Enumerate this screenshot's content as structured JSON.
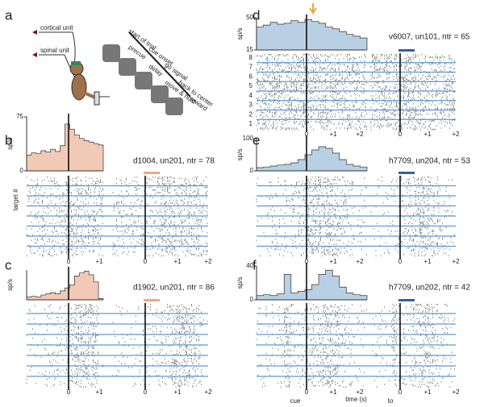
{
  "panel_a": {
    "label": "a",
    "cortical": "cortical unit",
    "spinal": "spinal unit",
    "task_labels": [
      "start of trial",
      "cue onset",
      "go signal",
      "back to center",
      "reward",
      "precue",
      "delay",
      "move & hold"
    ]
  },
  "left_panels": [
    {
      "label": "b",
      "info": "d1004, un201, ntr =  78",
      "ylabel": "sp/s",
      "side_label": "target #",
      "ylim": [
        0,
        75
      ],
      "yticks": [
        0,
        75
      ],
      "color": "#f2c9b6",
      "marker_color": "#f4a582",
      "values": [
        22,
        25,
        24,
        28,
        26,
        30,
        27,
        35,
        65,
        58,
        50,
        45,
        42,
        40,
        38,
        36
      ],
      "xticks_left": [
        "0",
        "+1"
      ],
      "xticks_right": [
        "0",
        "+1",
        "+2"
      ]
    },
    {
      "label": "c",
      "info": "d1902, un201, ntr =  86",
      "ylabel": "sp/s",
      "ylim": [
        0,
        50
      ],
      "color": "#f2c9b6",
      "marker_color": "#f4a582",
      "values": [
        5,
        6,
        5,
        8,
        10,
        12,
        10,
        15,
        20,
        25,
        40,
        45,
        48,
        42,
        30,
        2
      ],
      "xticks_left": [
        "0",
        "+1"
      ],
      "xticks_right": [
        "0",
        "+1",
        "+2"
      ]
    }
  ],
  "right_panels": [
    {
      "label": "d",
      "info": "v6007, un101, ntr =  65",
      "ylabel": "sp/s",
      "ylim": [
        15,
        50
      ],
      "yticks": [
        15,
        50
      ],
      "color": "#b9d0e4",
      "marker_color": "#3b5ba9",
      "targets": [
        1,
        2,
        3,
        4,
        5,
        6,
        7,
        8
      ],
      "values": [
        40,
        42,
        45,
        43,
        44,
        47,
        45,
        48,
        46,
        44,
        40,
        38,
        35,
        32,
        30,
        28
      ],
      "xticks_left": [
        "0",
        "+1",
        "+2"
      ],
      "xticks_right": [
        "0",
        "+1",
        "+2"
      ]
    },
    {
      "label": "e",
      "info": "h7709, un204, ntr = 53",
      "ylabel": "sp/s",
      "ylim": [
        0,
        100
      ],
      "yticks": [
        0,
        100
      ],
      "color": "#b9d0e4",
      "marker_color": "#3b5ba9",
      "values": [
        10,
        12,
        15,
        18,
        20,
        25,
        35,
        50,
        65,
        75,
        70,
        55,
        35,
        20,
        15,
        12
      ],
      "xticks_left": [
        "0",
        "+1",
        "+2"
      ],
      "xticks_right": [
        "0",
        "+1",
        "+2"
      ]
    },
    {
      "label": "f",
      "info": "h7709, un202, ntr = 42",
      "ylabel": "sp/s",
      "ylim": [
        0,
        40
      ],
      "yticks": [
        0,
        40
      ],
      "color": "#b9d0e4",
      "marker_color": "#3b5ba9",
      "values": [
        5,
        6,
        5,
        7,
        30,
        8,
        10,
        12,
        18,
        30,
        35,
        28,
        15,
        8,
        6,
        5
      ],
      "xticks_left": [
        "0",
        "+1",
        "+2"
      ],
      "xticks_right": [
        "0",
        "+1",
        "+2"
      ],
      "cue": "cue",
      "to": "to",
      "xlabel": "time (s)"
    }
  ]
}
